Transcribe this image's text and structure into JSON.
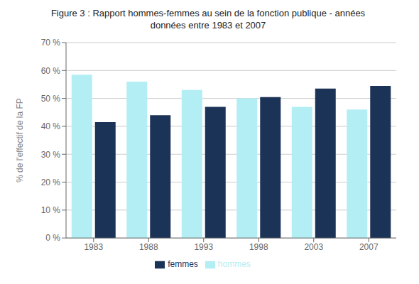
{
  "chart_data": {
    "type": "bar",
    "title": "Figure 3 : Rapport hommes‑femmes au sein de la fonction publique - années\ndonnées entre 1983 et 2007",
    "categories": [
      "1983",
      "1988",
      "1993",
      "1998",
      "2003",
      "2007"
    ],
    "series": [
      {
        "name": "hommes",
        "color": "#b2eef4",
        "values": [
          58.5,
          56.0,
          53.0,
          50.0,
          47.0,
          46.0
        ]
      },
      {
        "name": "femmes",
        "color": "#1c3358",
        "values": [
          41.5,
          44.0,
          47.0,
          50.5,
          53.5,
          54.5
        ]
      }
    ],
    "ylabel": "% de l'effectif de la FP",
    "ylim": [
      0,
      70
    ],
    "yticks": [
      {
        "value": 0,
        "label": "0 %"
      },
      {
        "value": 10,
        "label": "10 %"
      },
      {
        "value": 20,
        "label": "20 %"
      },
      {
        "value": 30,
        "label": "30 %"
      },
      {
        "value": 40,
        "label": "40 %"
      },
      {
        "value": 50,
        "label": "50 %"
      },
      {
        "value": 60,
        "label": "60 %"
      },
      {
        "value": 70,
        "label": "70 %"
      }
    ],
    "grid": true,
    "legend": "bottom"
  }
}
